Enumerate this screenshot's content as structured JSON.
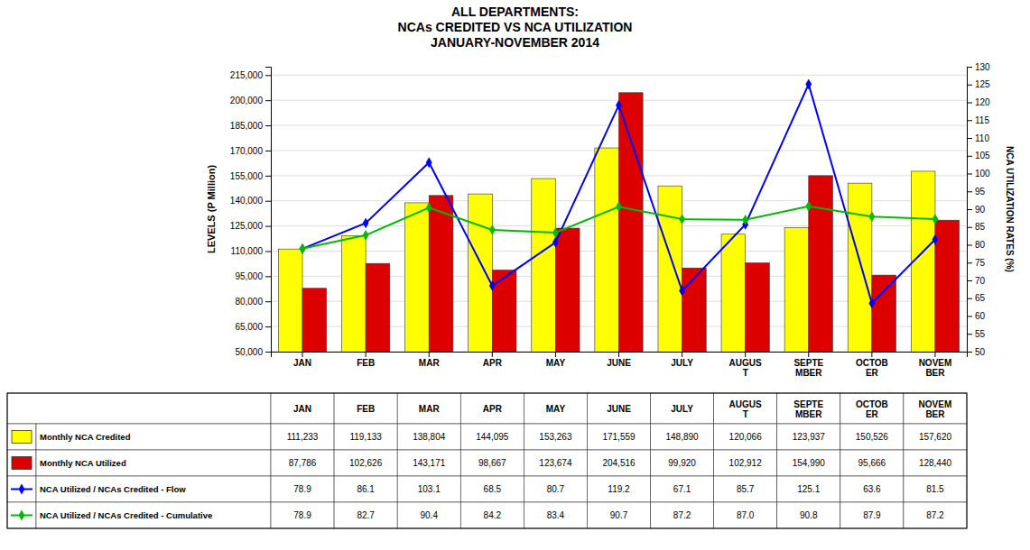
{
  "chart_data": {
    "type": "bar",
    "title": "ALL DEPARTMENTS:\nNCAs CREDITED VS NCA UTILIZATION\nJANUARY-NOVEMBER 2014",
    "categories": [
      "JAN",
      "FEB",
      "MAR",
      "APR",
      "MAY",
      "JUNE",
      "JULY",
      "AUGUS\nT",
      "SEPTE\nMBER",
      "OCTOB\nER",
      "NOVEM\nBER"
    ],
    "ylabel": "LEVELS (P Million)",
    "y2label": "NCA UTILIZATION RATES (%)",
    "ylim": [
      50000,
      220000
    ],
    "yticks": [
      {
        "value": 50000,
        "label": "50,000"
      },
      {
        "value": 65000,
        "label": "65,000"
      },
      {
        "value": 80000,
        "label": "80,000"
      },
      {
        "value": 95000,
        "label": "95,000"
      },
      {
        "value": 110000,
        "label": "110,000"
      },
      {
        "value": 125000,
        "label": "125,000"
      },
      {
        "value": 140000,
        "label": "140,000"
      },
      {
        "value": 155000,
        "label": "155,000"
      },
      {
        "value": 170000,
        "label": "170,000"
      },
      {
        "value": 185000,
        "label": "185,000"
      },
      {
        "value": 200000,
        "label": "200,000"
      },
      {
        "value": 215000,
        "label": "215,000"
      }
    ],
    "y2lim": [
      50,
      130
    ],
    "y2ticks": [
      50,
      55,
      60,
      65,
      70,
      75,
      80,
      85,
      90,
      95,
      100,
      105,
      110,
      115,
      120,
      125,
      130
    ],
    "grid": true,
    "series": [
      {
        "name": "Monthly NCA Credited",
        "type": "bar",
        "color": "#FFFF00",
        "values": [
          111233,
          119133,
          138804,
          144095,
          153263,
          171559,
          148890,
          120066,
          123937,
          150526,
          157620
        ],
        "value_labels": [
          "111,233",
          "119,133",
          "138,804",
          "144,095",
          "153,263",
          "171,559",
          "148,890",
          "120,066",
          "123,937",
          "150,526",
          "157,620"
        ]
      },
      {
        "name": "Monthly NCA Utilized",
        "type": "bar",
        "color": "#DD0000",
        "values": [
          87786,
          102626,
          143171,
          98667,
          123674,
          204516,
          99920,
          102912,
          154990,
          95666,
          128440
        ],
        "value_labels": [
          "87,786",
          "102,626",
          "143,171",
          "98,667",
          "123,674",
          "204,516",
          "99,920",
          "102,912",
          "154,990",
          "95,666",
          "128,440"
        ]
      },
      {
        "name": "NCA Utilized / NCAs Credited - Flow",
        "type": "line",
        "axis": "y2",
        "color": "#0000FF",
        "marker": "diamond",
        "values": [
          78.9,
          86.1,
          103.1,
          68.5,
          80.7,
          119.2,
          67.1,
          85.7,
          125.1,
          63.6,
          81.5
        ],
        "value_labels": [
          "78.9",
          "86.1",
          "103.1",
          "68.5",
          "80.7",
          "119.2",
          "67.1",
          "85.7",
          "125.1",
          "63.6",
          "81.5"
        ]
      },
      {
        "name": "NCA Utilized / NCAs Credited - Cumulative",
        "type": "line",
        "axis": "y2",
        "color": "#00BB00",
        "marker": "diamond",
        "values": [
          78.9,
          82.7,
          90.4,
          84.2,
          83.4,
          90.7,
          87.2,
          87.0,
          90.8,
          87.9,
          87.2
        ],
        "value_labels": [
          "78.9",
          "82.7",
          "90.4",
          "84.2",
          "83.4",
          "90.7",
          "87.2",
          "87.0",
          "90.8",
          "87.9",
          "87.2"
        ]
      }
    ]
  }
}
